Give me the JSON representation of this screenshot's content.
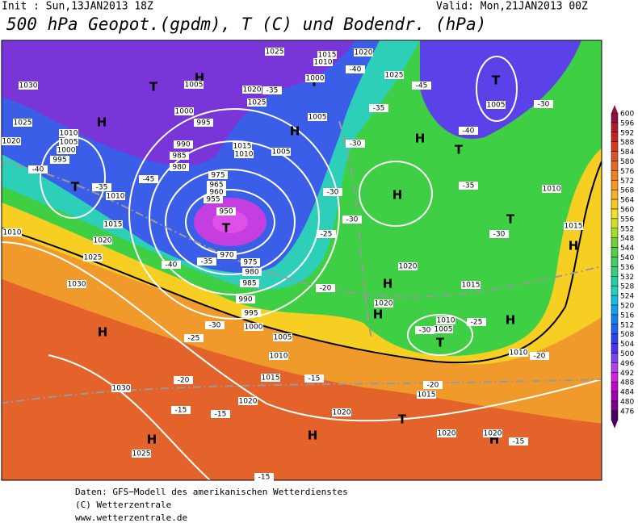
{
  "header": {
    "init": "Init : Sun,13JAN2013 18Z",
    "valid": "Valid: Mon,21JAN2013 00Z",
    "title": "500 hPa Geopot.(gpdm), T (C) und Bodendr. (hPa)"
  },
  "legend": {
    "levels": [
      476,
      480,
      484,
      488,
      492,
      496,
      500,
      504,
      508,
      512,
      516,
      520,
      524,
      528,
      532,
      536,
      540,
      544,
      548,
      552,
      556,
      560,
      564,
      568,
      572,
      576,
      580,
      584,
      588,
      592,
      596,
      600
    ],
    "colors": [
      "#4b0060",
      "#7a0090",
      "#a000b0",
      "#c000d0",
      "#d020e0",
      "#b040f0",
      "#8040f0",
      "#5030f0",
      "#3040f0",
      "#2060f0",
      "#1080f0",
      "#10a0f0",
      "#10c0e0",
      "#20d0c0",
      "#20d0a0",
      "#30d080",
      "#40d060",
      "#50d040",
      "#70d030",
      "#a0e020",
      "#d0e020",
      "#f0e020",
      "#f8c820",
      "#f8b020",
      "#f89820",
      "#f08020",
      "#e86820",
      "#e05020",
      "#d83820",
      "#c82020",
      "#b01830",
      "#901040"
    ]
  },
  "map": {
    "centers": [
      "H",
      "H",
      "H",
      "H",
      "H",
      "H",
      "H",
      "H",
      "H",
      "H",
      "H",
      "H",
      "T",
      "T",
      "T",
      "T",
      "T",
      "T",
      "T",
      "T",
      "T",
      "H"
    ],
    "isobars": [
      1025,
      1015,
      1010,
      1020,
      1025,
      1030,
      1025,
      1020,
      1010,
      1005,
      1000,
      995,
      1010,
      1015,
      1020,
      1025,
      1030,
      1010,
      1005,
      1020,
      1025,
      1000,
      995,
      990,
      985,
      980,
      975,
      965,
      960,
      955,
      950,
      1015,
      1010,
      1005,
      1005,
      1000,
      1005,
      1010,
      1015,
      1020,
      1015,
      1020,
      1010,
      1005,
      1010,
      1015,
      1020,
      1020,
      1030,
      1025,
      1020,
      1020,
      975,
      980,
      985,
      990,
      995,
      1000,
      1005,
      1010,
      1015,
      970
    ],
    "isotherms": [
      -40,
      -45,
      -40,
      -35,
      -35,
      -30,
      -35,
      -30,
      -30,
      -25,
      -20,
      -25,
      -30,
      -20,
      -15,
      -20,
      -20,
      -15,
      -15,
      -15,
      -15,
      -30,
      -30,
      -35,
      -40,
      -45,
      -40,
      -35,
      -30,
      -25
    ]
  },
  "footer": {
    "source": "Daten: GFS−Modell des amerikanischen Wetterdienstes",
    "copyright": "(C) Wetterzentrale",
    "url": "www.wetterzentrale.de"
  }
}
